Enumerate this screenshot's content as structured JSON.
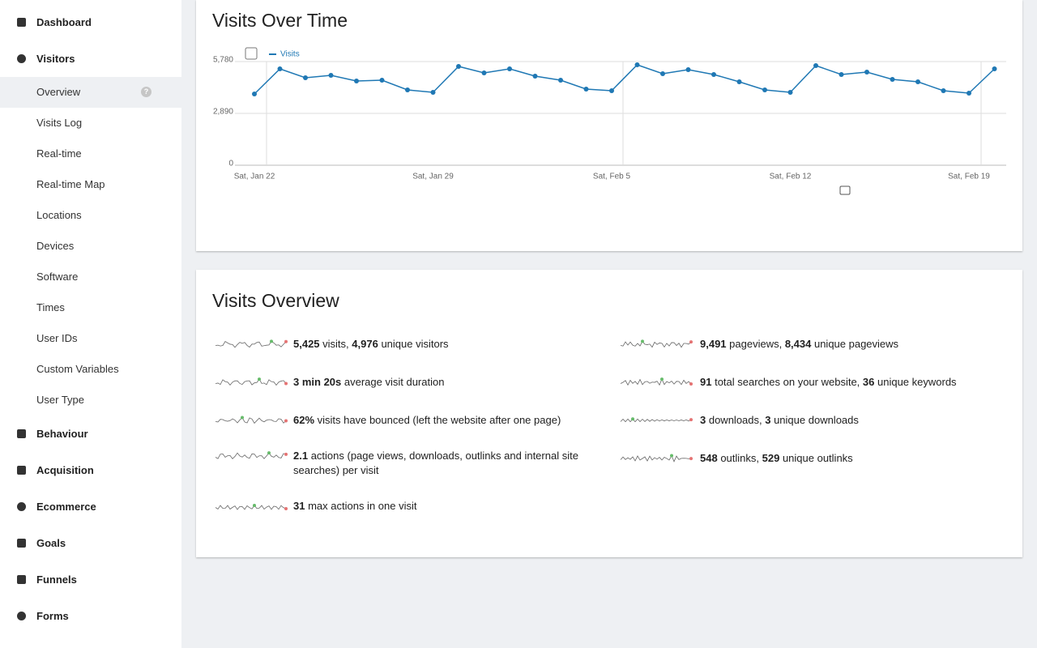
{
  "sidebar": [
    {
      "label": "Dashboard"
    },
    {
      "label": "Visitors",
      "children": [
        {
          "label": "Overview",
          "help": "?"
        },
        {
          "label": "Visits Log"
        },
        {
          "label": "Real-time"
        },
        {
          "label": "Real-time Map"
        },
        {
          "label": "Locations"
        },
        {
          "label": "Devices"
        },
        {
          "label": "Software"
        },
        {
          "label": "Times"
        },
        {
          "label": "User IDs"
        },
        {
          "label": "Custom Variables"
        },
        {
          "label": "User Type"
        }
      ]
    },
    {
      "label": "Behaviour"
    },
    {
      "label": "Acquisition"
    },
    {
      "label": "Ecommerce"
    },
    {
      "label": "Goals"
    },
    {
      "label": "Funnels"
    },
    {
      "label": "Forms"
    }
  ],
  "chart_data": {
    "type": "line",
    "title": "Visits Over Time",
    "categories": [
      "Sat, Jan 22",
      null,
      null,
      null,
      null,
      null,
      null,
      "Sat, Jan 29",
      null,
      null,
      null,
      null,
      null,
      null,
      "Sat, Feb 5",
      null,
      null,
      null,
      null,
      null,
      null,
      "Sat, Feb 12",
      null,
      null,
      null,
      null,
      null,
      null,
      "Sat, Feb 19",
      null
    ],
    "series": [
      {
        "name": "Visits",
        "color": "#1f78b4",
        "values": [
          3974,
          5374,
          4877,
          5013,
          4697,
          4742,
          4200,
          4064,
          5510,
          5148,
          5374,
          4968,
          4742,
          4245,
          4155,
          5600,
          5103,
          5329,
          5058,
          4651,
          4200,
          4064,
          5555,
          5058,
          5193,
          4787,
          4651,
          4155,
          4019,
          5374
        ]
      }
    ],
    "ylim": [
      0,
      5780
    ],
    "yticks": [
      0,
      {
        "value": 2890,
        "label": "2,890"
      },
      {
        "value": 5780,
        "label": "5,780"
      }
    ],
    "grid": true
  },
  "overview": {
    "title": "Visits Overview",
    "columns": [
      [
        {
          "parts": [
            "5,425",
            " visits, ",
            "4,976",
            " unique visitors"
          ]
        },
        {
          "parts": [
            "3 min 20s",
            " average visit duration"
          ]
        },
        {
          "parts": [
            "62%",
            " visits have bounced (left the website after one page)"
          ]
        },
        {
          "parts": [
            "2.1",
            " actions (page views, downloads, outlinks and internal site searches) per visit"
          ]
        },
        {
          "parts": [
            "31",
            " max actions in one visit"
          ]
        }
      ],
      [
        {
          "parts": [
            "9,491",
            " pageviews, ",
            "8,434",
            " unique pageviews"
          ]
        },
        {
          "parts": [
            "91",
            " total searches on your website, ",
            "36",
            " unique keywords"
          ]
        },
        {
          "parts": [
            "3",
            " downloads, ",
            "3",
            " unique downloads"
          ]
        },
        {
          "parts": [
            "548",
            " outlinks, ",
            "529",
            " unique outlinks"
          ]
        }
      ]
    ]
  }
}
